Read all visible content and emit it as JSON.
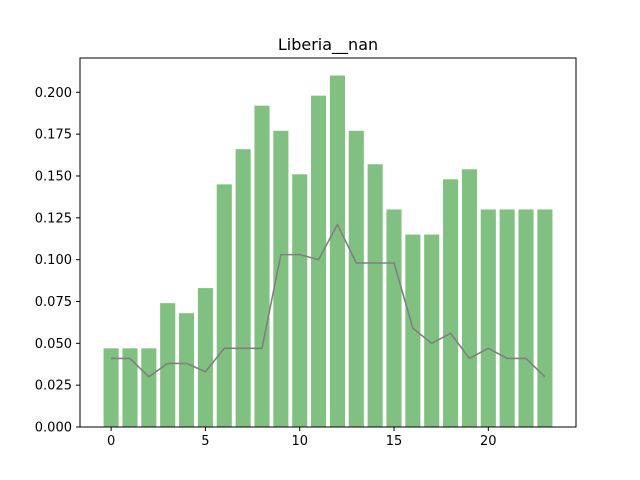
{
  "chart_data": {
    "type": "bar",
    "title": "Liberia__nan",
    "xlabel": "",
    "ylabel": "",
    "x": [
      0,
      1,
      2,
      3,
      4,
      5,
      6,
      7,
      8,
      9,
      10,
      11,
      12,
      13,
      14,
      15,
      16,
      17,
      18,
      19,
      20,
      21,
      22,
      23
    ],
    "series": [
      {
        "type": "bar",
        "color": "#80c080",
        "values": [
          0.047,
          0.047,
          0.047,
          0.074,
          0.068,
          0.083,
          0.145,
          0.166,
          0.192,
          0.177,
          0.151,
          0.198,
          0.21,
          0.177,
          0.157,
          0.13,
          0.115,
          0.115,
          0.148,
          0.154,
          0.13,
          0.13,
          0.13,
          0.13
        ]
      },
      {
        "type": "line",
        "color": "#808080",
        "values": [
          0.041,
          0.041,
          0.03,
          0.038,
          0.038,
          0.033,
          0.047,
          0.047,
          0.047,
          0.103,
          0.103,
          0.1,
          0.121,
          0.098,
          0.098,
          0.098,
          0.059,
          0.05,
          0.056,
          0.041,
          0.047,
          0.041,
          0.041,
          0.03
        ]
      }
    ],
    "xlim": [
      -1.65,
      24.65
    ],
    "ylim": [
      0,
      0.2205
    ],
    "xticks": [
      0,
      5,
      10,
      15,
      20
    ],
    "xtick_labels": [
      "0",
      "5",
      "10",
      "15",
      "20"
    ],
    "yticks": [
      0,
      0.025,
      0.05,
      0.075,
      0.1,
      0.125,
      0.15,
      0.175,
      0.2
    ],
    "ytick_labels": [
      "0.000",
      "0.025",
      "0.050",
      "0.075",
      "0.100",
      "0.125",
      "0.150",
      "0.175",
      "0.200"
    ],
    "grid": false,
    "legend": false
  }
}
